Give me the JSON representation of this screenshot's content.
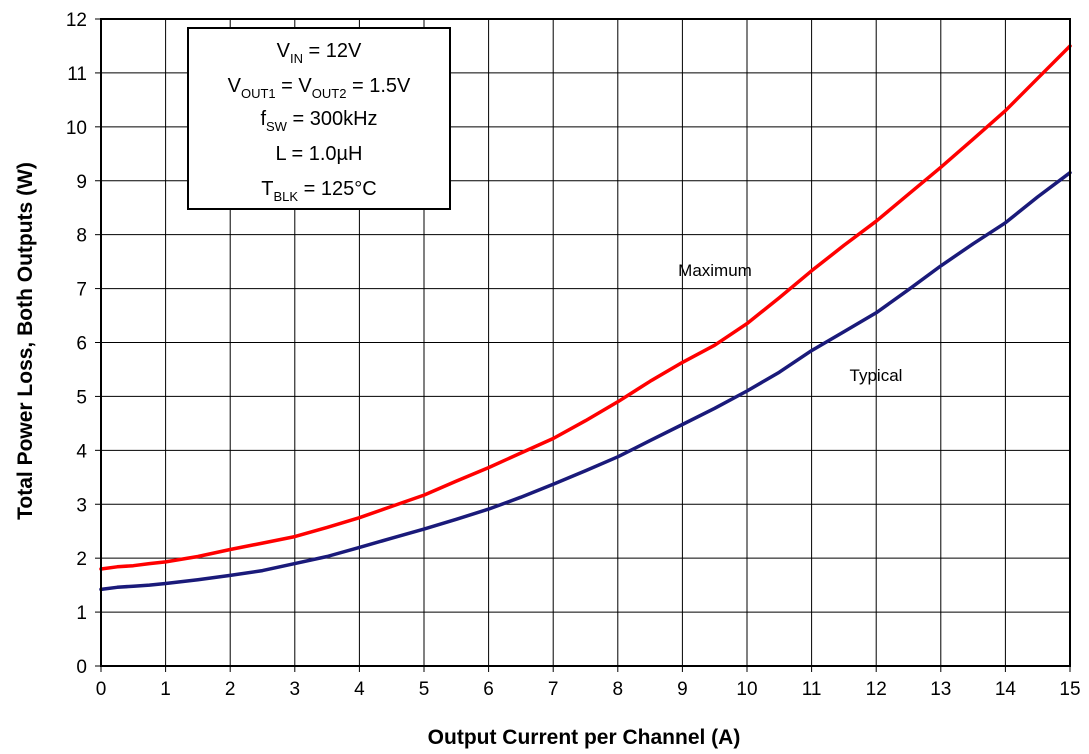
{
  "chart_data": {
    "type": "line",
    "xlabel": "Output Current per Channel (A)",
    "ylabel": "Total Power Loss, Both Outputs (W)",
    "xlim": [
      0,
      15
    ],
    "ylim": [
      0,
      12
    ],
    "xticks": [
      "0",
      "1",
      "2",
      "3",
      "4",
      "5",
      "6",
      "7",
      "8",
      "9",
      "10",
      "11",
      "12",
      "13",
      "14",
      "15"
    ],
    "yticks": [
      "0",
      "1",
      "2",
      "3",
      "4",
      "5",
      "6",
      "7",
      "8",
      "9",
      "10",
      "11",
      "12"
    ],
    "grid": true,
    "conditions": [
      {
        "main": "V",
        "sub": "IN",
        "rest": " = 12V"
      },
      {
        "main": "V",
        "sub": "OUT1",
        "mid": " = V",
        "sub2": "OUT2",
        "rest": " = 1.5V"
      },
      {
        "main": "f",
        "sub": "SW",
        "rest": " = 300kHz"
      },
      {
        "main": "L = 1.0µH"
      },
      {
        "main": "T",
        "sub": "BLK",
        "rest": "  = 125°C"
      }
    ],
    "series": [
      {
        "name": "Maximum",
        "color": "#ff0000",
        "x": [
          0,
          0.25,
          0.5,
          0.75,
          1,
          1.5,
          2,
          2.5,
          3,
          3.5,
          4,
          4.5,
          5,
          5.5,
          6,
          6.5,
          7,
          7.5,
          8,
          8.5,
          9,
          9.5,
          10,
          10.5,
          11,
          11.5,
          12,
          12.5,
          13,
          13.5,
          14,
          14.5,
          15
        ],
        "values": [
          1.8,
          1.84,
          1.86,
          1.9,
          1.93,
          2.03,
          2.16,
          2.28,
          2.4,
          2.57,
          2.75,
          2.96,
          3.17,
          3.43,
          3.68,
          3.95,
          4.22,
          4.55,
          4.9,
          5.28,
          5.63,
          5.95,
          6.35,
          6.83,
          7.33,
          7.8,
          8.25,
          8.75,
          9.25,
          9.77,
          10.3,
          10.9,
          11.5
        ]
      },
      {
        "name": "Typical",
        "color": "#1a1a7a",
        "x": [
          0,
          0.25,
          0.5,
          0.75,
          1,
          1.5,
          2,
          2.5,
          3,
          3.5,
          4,
          4.5,
          5,
          5.5,
          6,
          6.5,
          7,
          7.5,
          8,
          8.5,
          9,
          9.5,
          10,
          10.5,
          11,
          11.5,
          12,
          12.5,
          13,
          13.5,
          14,
          14.5,
          15
        ],
        "values": [
          1.42,
          1.46,
          1.48,
          1.5,
          1.53,
          1.6,
          1.68,
          1.77,
          1.9,
          2.03,
          2.2,
          2.37,
          2.54,
          2.72,
          2.91,
          3.13,
          3.37,
          3.62,
          3.88,
          4.18,
          4.48,
          4.78,
          5.1,
          5.45,
          5.85,
          6.2,
          6.55,
          6.98,
          7.42,
          7.83,
          8.22,
          8.7,
          9.15
        ]
      }
    ]
  }
}
